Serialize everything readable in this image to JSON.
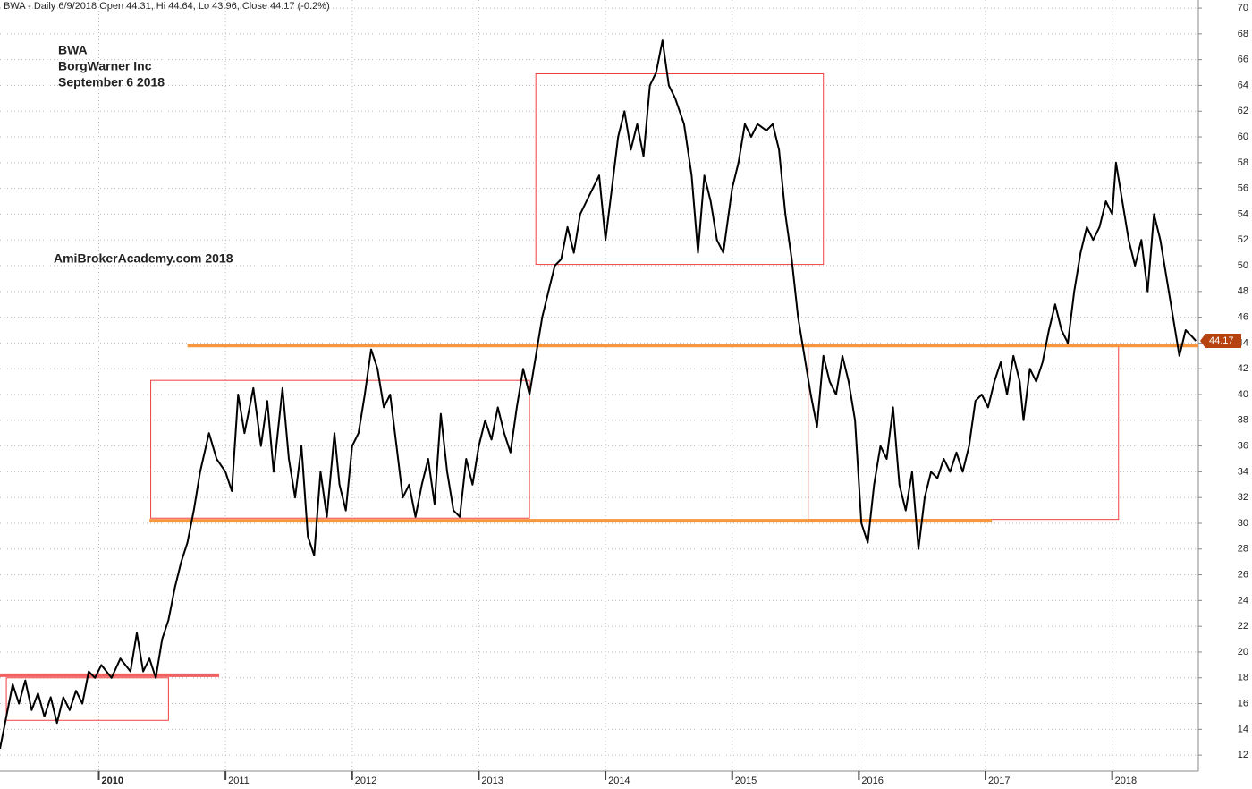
{
  "chart_data": {
    "type": "line",
    "title": "BWA - Daily 6/9/2018 Open 44.31, Hi 44.64, Lo 43.96, Close 44.17 (-0.2%)",
    "annotations": [
      "BWA",
      "BorgWarner Inc",
      "September 6 2018",
      "AmiBrokerAcademy.com 2018"
    ],
    "annotation_color": "#e84a4a",
    "x": [
      2009.22,
      2009.27,
      2009.32,
      2009.37,
      2009.42,
      2009.47,
      2009.52,
      2009.57,
      2009.62,
      2009.67,
      2009.72,
      2009.77,
      2009.82,
      2009.87,
      2009.92,
      2009.97,
      2010.02,
      2010.1,
      2010.17,
      2010.25,
      2010.3,
      2010.35,
      2010.4,
      2010.45,
      2010.5,
      2010.55,
      2010.6,
      2010.65,
      2010.7,
      2010.75,
      2010.8,
      2010.87,
      2010.93,
      2011.0,
      2011.05,
      2011.1,
      2011.15,
      2011.22,
      2011.28,
      2011.33,
      2011.38,
      2011.45,
      2011.5,
      2011.55,
      2011.6,
      2011.65,
      2011.7,
      2011.75,
      2011.8,
      2011.86,
      2011.9,
      2011.95,
      2012.0,
      2012.05,
      2012.1,
      2012.15,
      2012.2,
      2012.25,
      2012.3,
      2012.35,
      2012.4,
      2012.45,
      2012.5,
      2012.55,
      2012.6,
      2012.65,
      2012.7,
      2012.75,
      2012.8,
      2012.85,
      2012.9,
      2012.95,
      2013.0,
      2013.05,
      2013.1,
      2013.15,
      2013.2,
      2013.25,
      2013.3,
      2013.35,
      2013.4,
      2013.45,
      2013.5,
      2013.55,
      2013.6,
      2013.65,
      2013.7,
      2013.75,
      2013.8,
      2013.85,
      2013.9,
      2013.95,
      2014.0,
      2014.05,
      2014.1,
      2014.15,
      2014.2,
      2014.25,
      2014.3,
      2014.35,
      2014.4,
      2014.45,
      2014.5,
      2014.55,
      2014.62,
      2014.68,
      2014.73,
      2014.78,
      2014.83,
      2014.88,
      2014.93,
      2015.0,
      2015.05,
      2015.1,
      2015.15,
      2015.2,
      2015.27,
      2015.32,
      2015.37,
      2015.42,
      2015.47,
      2015.52,
      2015.57,
      2015.62,
      2015.67,
      2015.72,
      2015.77,
      2015.82,
      2015.87,
      2015.92,
      2015.97,
      2016.02,
      2016.07,
      2016.12,
      2016.17,
      2016.22,
      2016.27,
      2016.32,
      2016.37,
      2016.42,
      2016.47,
      2016.52,
      2016.57,
      2016.62,
      2016.67,
      2016.72,
      2016.77,
      2016.82,
      2016.87,
      2016.92,
      2016.97,
      2017.02,
      2017.07,
      2017.12,
      2017.17,
      2017.22,
      2017.27,
      2017.3,
      2017.35,
      2017.4,
      2017.45,
      2017.5,
      2017.55,
      2017.6,
      2017.65,
      2017.7,
      2017.75,
      2017.8,
      2017.85,
      2017.9,
      2017.95,
      2018.0,
      2018.03,
      2018.08,
      2018.13,
      2018.18,
      2018.23,
      2018.28,
      2018.33,
      2018.38,
      2018.43,
      2018.48,
      2018.53,
      2018.58,
      2018.63,
      2018.66
    ],
    "series": [
      {
        "name": "BWA",
        "color": "#000000",
        "values": [
          12.5,
          15,
          17.5,
          16,
          17.8,
          15.5,
          16.8,
          15,
          16.5,
          14.5,
          16.5,
          15.5,
          17,
          16,
          18.5,
          18,
          19,
          18,
          19.5,
          18.5,
          21.5,
          18.5,
          19.5,
          18,
          21,
          22.5,
          25,
          27,
          28.5,
          31,
          34,
          37,
          35,
          34,
          32.5,
          40,
          37,
          40.5,
          36,
          39.5,
          34,
          40.5,
          35,
          32,
          36,
          29,
          27.5,
          34,
          30.5,
          37,
          33,
          31,
          36,
          37,
          40,
          43.5,
          42,
          39,
          40,
          36,
          32,
          33,
          30.5,
          33,
          35,
          31.5,
          38.5,
          34,
          31,
          30.5,
          35,
          33,
          36,
          38,
          36.5,
          39,
          37,
          35.5,
          39,
          42,
          40,
          43,
          46,
          48,
          50,
          50.5,
          53,
          51,
          54,
          55,
          56,
          57,
          52,
          56,
          60,
          62,
          59,
          61,
          58.5,
          64,
          65,
          67.5,
          64,
          63,
          61,
          57,
          51,
          57,
          55,
          52,
          51,
          56,
          58,
          61,
          60,
          61,
          60.5,
          61,
          59,
          54,
          50.5,
          46,
          43,
          40,
          37.5,
          43,
          41,
          40,
          43,
          41,
          38,
          30,
          28.5,
          33,
          36,
          35,
          39,
          33,
          31,
          34,
          28,
          32,
          34,
          33.5,
          35,
          34,
          35.5,
          34,
          36,
          39.5,
          40,
          39,
          41,
          42.5,
          40,
          43,
          41,
          38,
          42,
          41,
          42.5,
          45,
          47,
          45,
          44,
          48,
          51,
          53,
          52,
          53,
          55,
          54,
          58,
          55,
          52,
          50,
          52,
          48,
          54,
          52,
          49,
          46,
          43,
          45,
          44.5,
          44.17
        ]
      }
    ],
    "last_price": 44.17,
    "last_price_color": "#b5420f",
    "boxes": {
      "color": "#f04040",
      "x1": [
        2009.27,
        2010.41,
        2013.45,
        2015.6
      ],
      "x2": [
        2010.55,
        2013.4,
        2015.72,
        2018.05
      ],
      "y1": [
        14.7,
        30.4,
        50.1,
        30.3
      ],
      "y2": [
        18,
        41.1,
        64.9,
        43.8
      ]
    },
    "hlines": {
      "colors": [
        "#f06060",
        "#f7963c",
        "#f7963c"
      ],
      "x1": [
        2009.22,
        2010.4,
        2010.7
      ],
      "x2": [
        2010.95,
        2017.05,
        2018.68
      ],
      "y": [
        18.2,
        30.2,
        43.8
      ]
    },
    "xlim": [
      2009.22,
      2018.68
    ],
    "ylim": [
      10.76,
      70.63
    ],
    "xticks": [
      2010,
      2011,
      2012,
      2013,
      2014,
      2015,
      2016,
      2017,
      2018
    ],
    "yticks": [
      12,
      14,
      16,
      18,
      20,
      22,
      24,
      26,
      28,
      30,
      32,
      34,
      36,
      38,
      40,
      42,
      44,
      46,
      48,
      50,
      52,
      54,
      56,
      58,
      60,
      62,
      64,
      66,
      68,
      70
    ],
    "grid": true
  }
}
